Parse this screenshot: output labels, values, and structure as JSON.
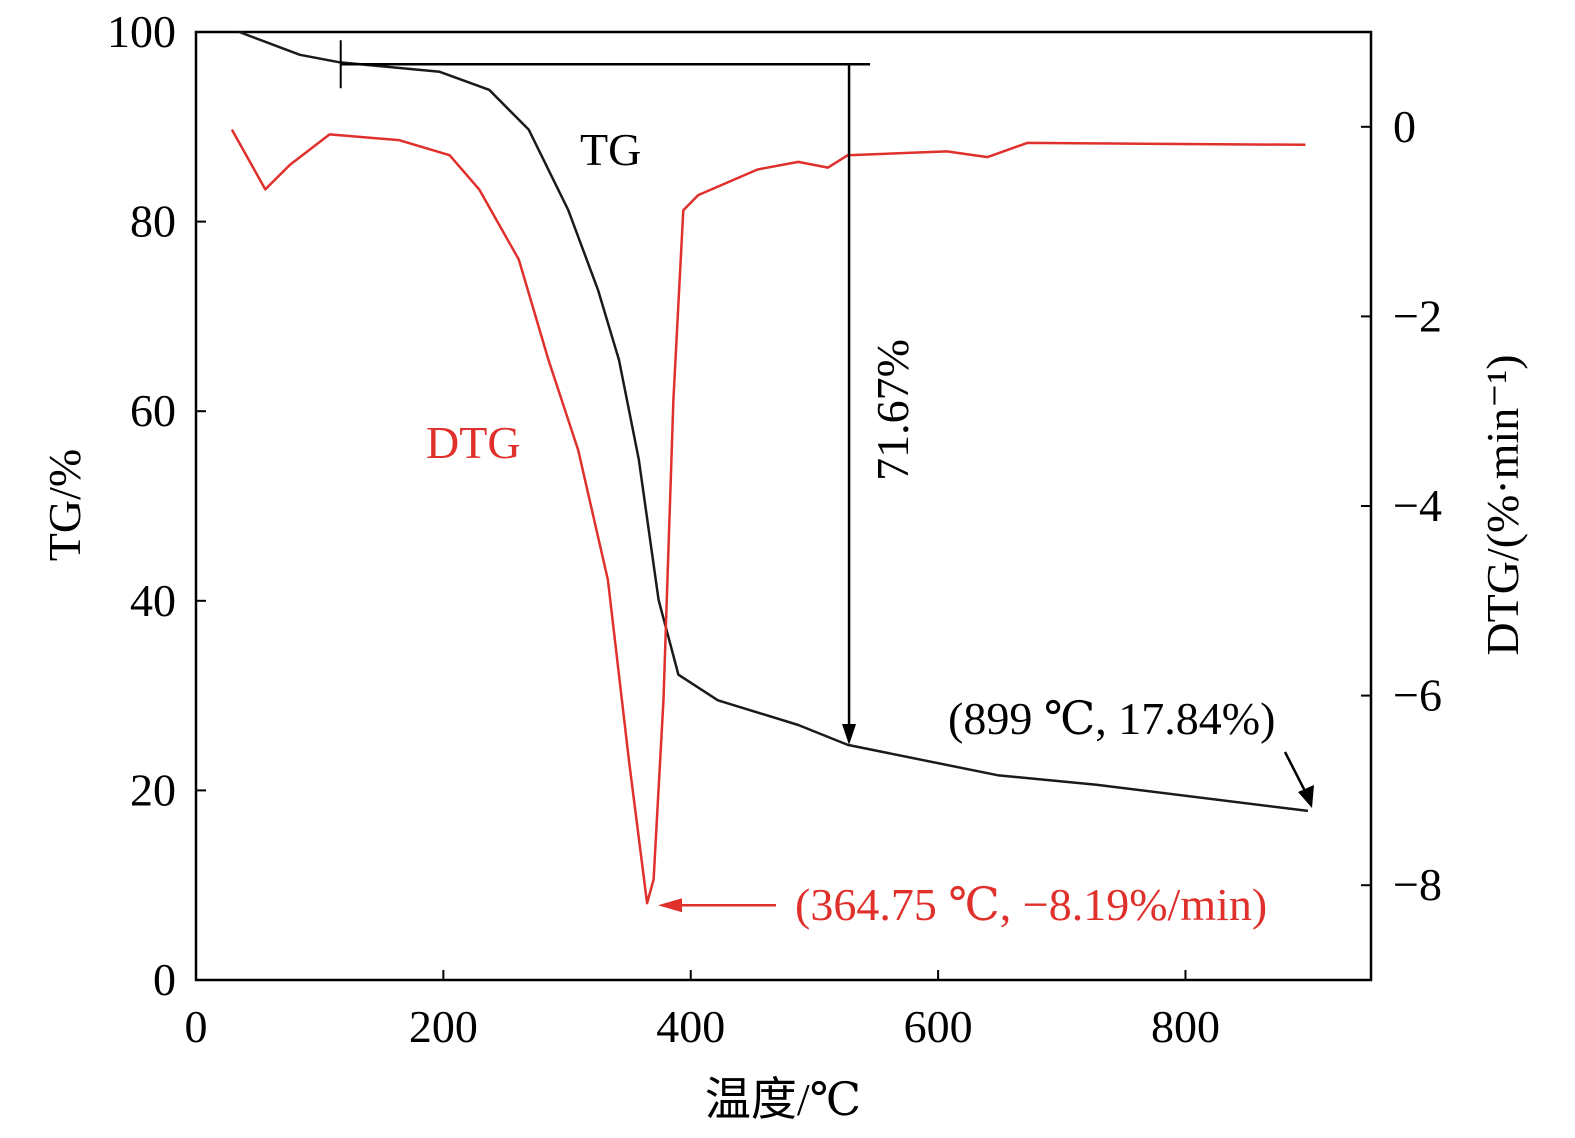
{
  "chart_data": {
    "type": "line",
    "xlabel": "温度/℃",
    "ylabel_left": "TG/%",
    "ylabel_right": "DTG/(%·min⁻¹)",
    "xlim": [
      0,
      950
    ],
    "ylim_left": [
      0,
      100
    ],
    "ylim_right": [
      -9,
      1
    ],
    "x_ticks": [
      0,
      200,
      400,
      600,
      800
    ],
    "y_ticks_left": [
      0,
      20,
      40,
      60,
      80,
      100
    ],
    "y_ticks_right": [
      0,
      -2,
      -4,
      -6,
      -8
    ],
    "y_tick_labels_right": [
      "0",
      "−2",
      "−4",
      "−6",
      "−8"
    ],
    "grid": false,
    "colors": {
      "TG": "#1a1a1a",
      "DTG": "#e0302c"
    },
    "series": [
      {
        "name": "TG",
        "axis": "left",
        "x": [
          35,
          84,
          116,
          197,
          237,
          269,
          301,
          325,
          342,
          358,
          374,
          390,
          422,
          487,
          527,
          648,
          728,
          899
        ],
        "y": [
          100,
          97.6,
          96.8,
          95.8,
          93.9,
          89.7,
          81.2,
          72.8,
          65.4,
          54.9,
          40.1,
          32.2,
          29.5,
          26.9,
          24.8,
          21.6,
          20.6,
          17.84
        ]
      },
      {
        "name": "DTG",
        "axis": "right",
        "x": [
          29,
          56,
          76,
          108,
          164,
          205,
          229,
          261,
          285,
          309,
          333,
          350,
          364.75,
          370,
          378,
          386,
          394,
          406,
          454,
          487,
          511,
          527,
          607,
          640,
          672,
          897
        ],
        "y": [
          -0.03,
          -0.66,
          -0.4,
          -0.08,
          -0.14,
          -0.3,
          -0.66,
          -1.4,
          -2.46,
          -3.41,
          -4.78,
          -6.68,
          -8.19,
          -7.94,
          -6.04,
          -2.88,
          -0.88,
          -0.72,
          -0.45,
          -0.37,
          -0.43,
          -0.3,
          -0.26,
          -0.32,
          -0.17,
          -0.19
        ]
      }
    ],
    "annotations": {
      "tg_label": "TG",
      "dtg_label": "DTG",
      "mass_loss": "71.67%",
      "tg_end": "(899 ℃, 17.84%)",
      "dtg_peak": "(364.75 ℃, −8.19%/min)"
    }
  }
}
